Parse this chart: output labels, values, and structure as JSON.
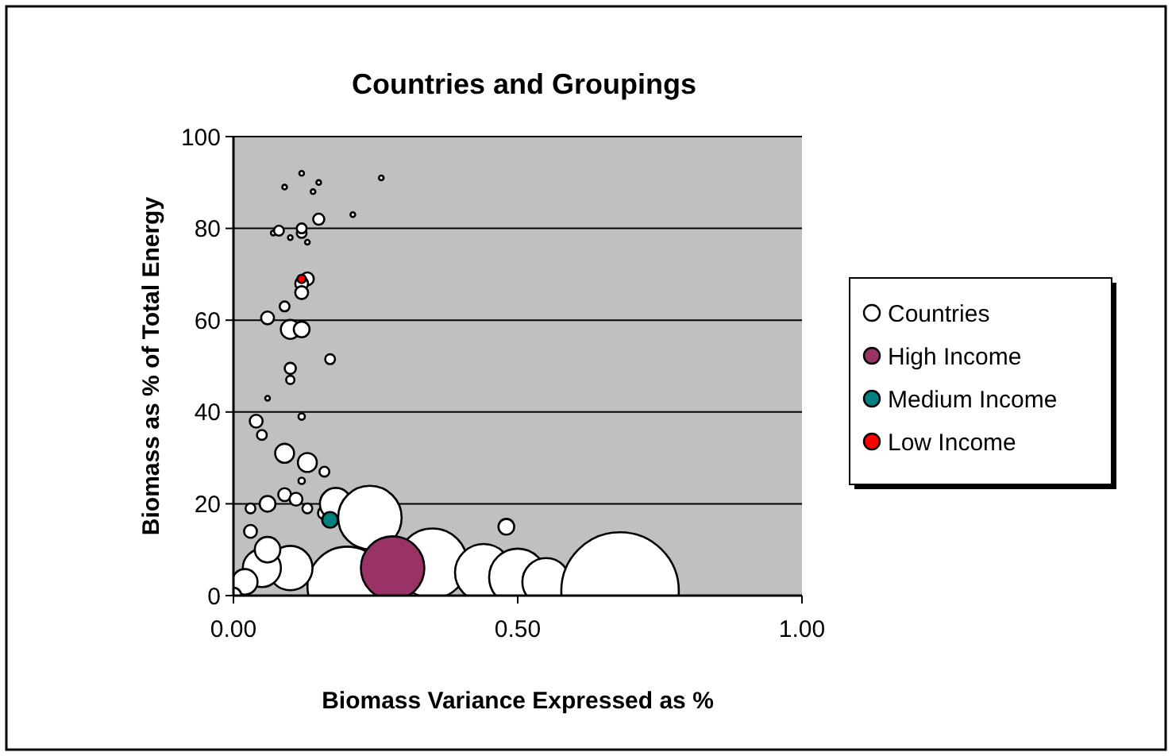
{
  "chart_data": {
    "type": "bubble",
    "title": "Countries and Groupings",
    "xlabel": "Biomass Variance Expressed as %",
    "ylabel": "Biomass as % of Total Energy",
    "xlim": [
      0,
      1
    ],
    "ylim": [
      0,
      100
    ],
    "xticks": [
      {
        "value": 0,
        "label": "0.00"
      },
      {
        "value": 0.5,
        "label": "0.50"
      },
      {
        "value": 1,
        "label": "1.00"
      }
    ],
    "yticks": [
      0,
      20,
      40,
      60,
      80,
      100
    ],
    "grid": "y",
    "legend": "right",
    "series": [
      {
        "name": "Countries",
        "color": "#ffffff",
        "x": [
          0.09,
          0.12,
          0.15,
          0.26,
          0.14,
          0.21,
          0.07,
          0.1,
          0.13,
          0.08,
          0.12,
          0.15,
          0.12,
          0.13,
          0.12,
          0.12,
          0.09,
          0.06,
          0.1,
          0.12,
          0.17,
          0.1,
          0.1,
          0.06,
          0.12,
          0.04,
          0.05,
          0.09,
          0.13,
          0.16,
          0.12,
          0.03,
          0.06,
          0.09,
          0.11,
          0.13,
          0.16,
          0.18,
          0.24,
          0.35,
          0.44,
          0.5,
          0.55,
          0.68,
          0.2,
          0.1,
          0.05,
          0.02,
          0.0,
          0.06,
          0.03,
          0.48
        ],
        "values": [
          89,
          92,
          90,
          91,
          88,
          83,
          79,
          78,
          77,
          79.5,
          79,
          82,
          80,
          69,
          68,
          66,
          63,
          60.5,
          58,
          58,
          51.5,
          49.5,
          47,
          43,
          39,
          38,
          35,
          31,
          29,
          27,
          25,
          19,
          20,
          22,
          21,
          19,
          18,
          20,
          17,
          7,
          5,
          4,
          3,
          1,
          2,
          6,
          6,
          3,
          0,
          10,
          14,
          15
        ],
        "sizes": [
          0.0016,
          0.0016,
          0.0016,
          0.0016,
          0.0016,
          0.0016,
          0.0016,
          0.0016,
          0.0016,
          0.007,
          0.007,
          0.009,
          0.007,
          0.012,
          0.012,
          0.012,
          0.007,
          0.012,
          0.026,
          0.018,
          0.007,
          0.009,
          0.005,
          0.0016,
          0.003,
          0.012,
          0.007,
          0.026,
          0.026,
          0.007,
          0.003,
          0.007,
          0.018,
          0.012,
          0.012,
          0.007,
          0.012,
          0.073,
          0.292,
          0.354,
          0.237,
          0.237,
          0.164,
          1,
          0.457,
          0.143,
          0.105,
          0.047,
          0.018,
          0.047,
          0.012,
          0.018
        ]
      },
      {
        "name": "High Income",
        "color": "#993366",
        "x": [
          0.28
        ],
        "values": [
          6
        ],
        "sizes": [
          0.292
        ]
      },
      {
        "name": "Medium Income",
        "color": "#008080",
        "x": [
          0.17
        ],
        "values": [
          16.5
        ],
        "sizes": [
          0.018
        ]
      },
      {
        "name": "Low Income",
        "color": "#ff0000",
        "x": [
          0.12
        ],
        "values": [
          69
        ],
        "sizes": [
          0.005
        ]
      }
    ]
  }
}
